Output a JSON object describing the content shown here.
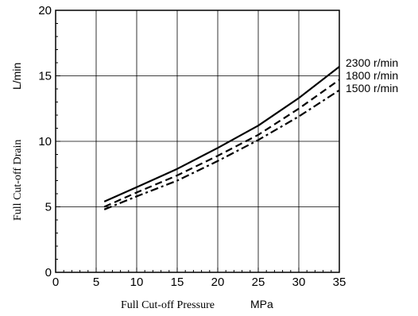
{
  "chart_data": {
    "type": "line",
    "xlabel": "Full Cut-off Pressure",
    "xunit": "MPa",
    "ylabel": "Full Cut-off Drain",
    "yunit": "L/min",
    "xlim": [
      0,
      35
    ],
    "ylim": [
      0,
      20
    ],
    "xticks": [
      0,
      5,
      10,
      15,
      20,
      25,
      30,
      35
    ],
    "yticks": [
      0,
      5,
      10,
      15,
      20
    ],
    "grid": true,
    "x": [
      6,
      10,
      15,
      20,
      25,
      30,
      35
    ],
    "series": [
      {
        "name": "2300 r/min",
        "style": "solid",
        "values": [
          5.4,
          6.5,
          7.9,
          9.5,
          11.2,
          13.3,
          15.7
        ]
      },
      {
        "name": "1800 r/min",
        "style": "dashed",
        "values": [
          5.0,
          6.1,
          7.4,
          8.9,
          10.5,
          12.5,
          14.7
        ]
      },
      {
        "name": "1500 r/min",
        "style": "dash-dot",
        "values": [
          4.8,
          5.8,
          7.0,
          8.5,
          10.1,
          11.9,
          13.9
        ]
      }
    ]
  }
}
